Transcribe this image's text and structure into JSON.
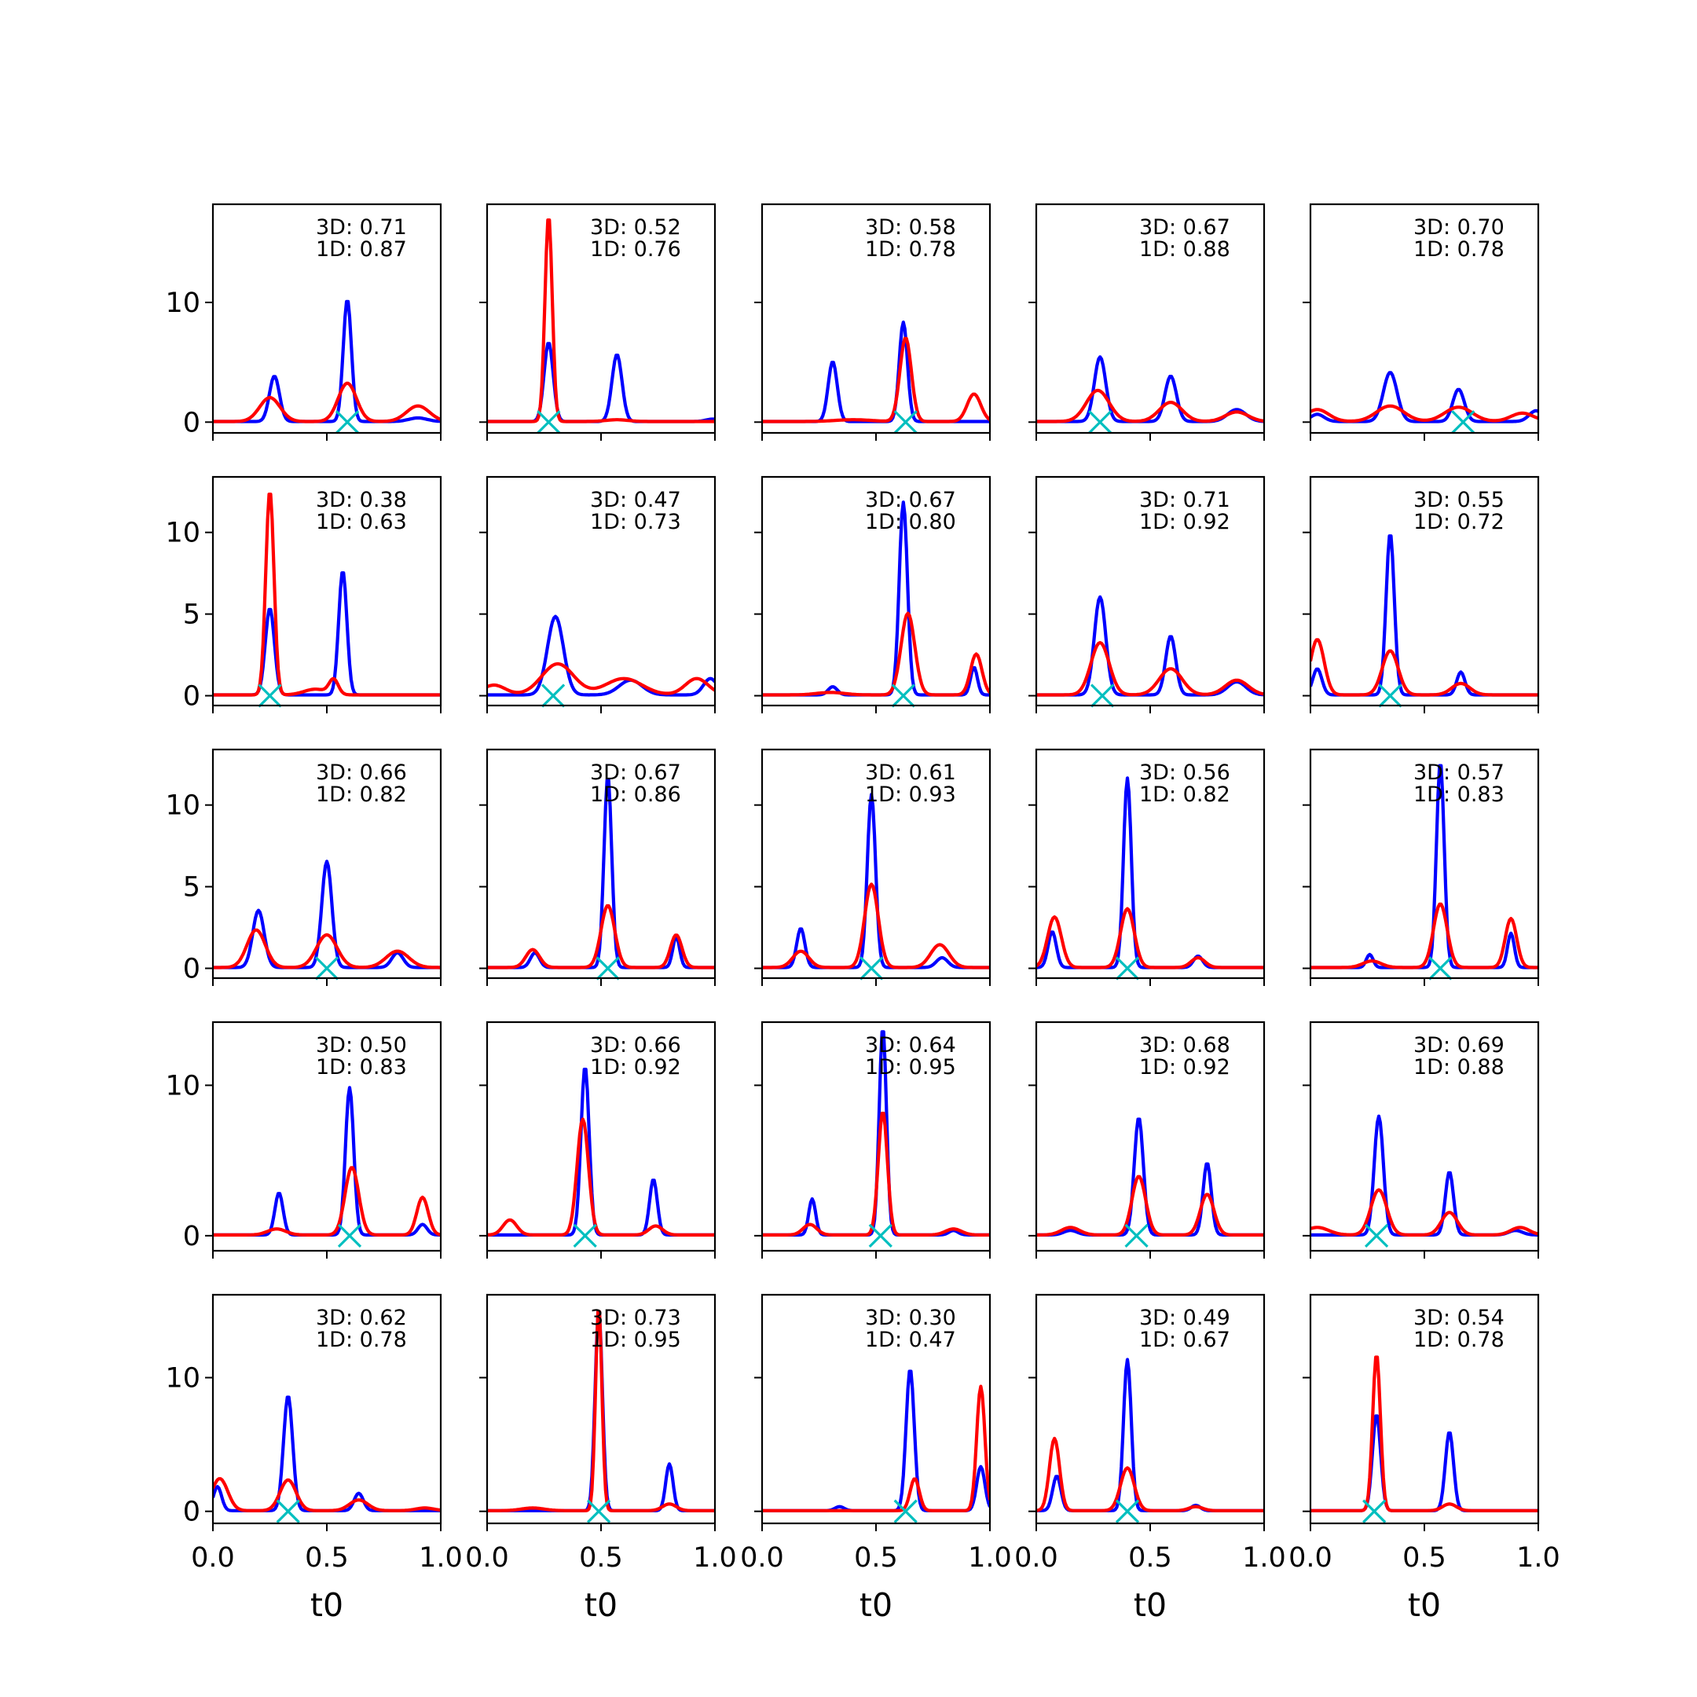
{
  "chart_data": {
    "type": "line",
    "layout": {
      "rows": 5,
      "cols": 5
    },
    "xlim": [
      0,
      1
    ],
    "xticks": [
      "0.0",
      "0.5",
      "1.0"
    ],
    "xlabel": "t0",
    "colors": {
      "blue": "#0000ff",
      "red": "#ff0000",
      "marker": "#00bfbf"
    },
    "row_yticks": [
      [
        "0",
        "10"
      ],
      [
        "0",
        "5",
        "10"
      ],
      [
        "0",
        "5",
        "10"
      ],
      [
        "0",
        "10"
      ],
      [
        "0",
        "10"
      ]
    ],
    "row_yticks_values": [
      [
        0,
        10
      ],
      [
        0,
        5,
        10
      ],
      [
        0,
        5,
        10
      ],
      [
        0,
        10
      ],
      [
        0,
        10
      ]
    ],
    "row_ylim": [
      [
        -0.9,
        18.2
      ],
      [
        -0.6,
        13.4
      ],
      [
        -0.6,
        13.4
      ],
      [
        -1.0,
        14.2
      ],
      [
        -0.9,
        16.2
      ]
    ],
    "panels": [
      {
        "label3d": "3D: 0.71",
        "label1d": "1D: 0.87",
        "marker_x": 0.59,
        "baseline": 0.05,
        "blue": [
          [
            0.27,
            3.8,
            0.022
          ],
          [
            0.59,
            10.2,
            0.018
          ],
          [
            0.9,
            0.3,
            0.04
          ]
        ],
        "red": [
          [
            0.25,
            2.0,
            0.045
          ],
          [
            0.59,
            3.2,
            0.04
          ],
          [
            0.9,
            1.3,
            0.05
          ]
        ]
      },
      {
        "label3d": "3D: 0.52",
        "label1d": "1D: 0.76",
        "marker_x": 0.27,
        "baseline": 0.05,
        "blue": [
          [
            0.27,
            6.6,
            0.02
          ],
          [
            0.57,
            5.6,
            0.022
          ],
          [
            0.99,
            0.2,
            0.03
          ]
        ],
        "red": [
          [
            0.27,
            17.2,
            0.016
          ],
          [
            0.57,
            0.15,
            0.05
          ]
        ]
      },
      {
        "label3d": "3D: 0.58",
        "label1d": "1D: 0.78",
        "marker_x": 0.63,
        "baseline": 0.05,
        "blue": [
          [
            0.31,
            5.0,
            0.02
          ],
          [
            0.62,
            8.3,
            0.018
          ]
        ],
        "red": [
          [
            0.63,
            7.0,
            0.025
          ],
          [
            0.93,
            2.3,
            0.03
          ],
          [
            0.4,
            0.15,
            0.08
          ]
        ]
      },
      {
        "label3d": "3D: 0.67",
        "label1d": "1D: 0.88",
        "marker_x": 0.28,
        "baseline": 0.05,
        "blue": [
          [
            0.28,
            5.4,
            0.025
          ],
          [
            0.59,
            3.8,
            0.025
          ],
          [
            0.88,
            1.0,
            0.04
          ]
        ],
        "red": [
          [
            0.27,
            2.6,
            0.05
          ],
          [
            0.59,
            1.6,
            0.05
          ],
          [
            0.88,
            0.8,
            0.05
          ]
        ]
      },
      {
        "label3d": "3D: 0.70",
        "label1d": "1D: 0.78",
        "marker_x": 0.67,
        "baseline": 0.05,
        "blue": [
          [
            0.35,
            4.1,
            0.03
          ],
          [
            0.65,
            2.7,
            0.025
          ],
          [
            0.99,
            0.9,
            0.03
          ],
          [
            0.03,
            0.6,
            0.03
          ]
        ],
        "red": [
          [
            0.35,
            1.3,
            0.06
          ],
          [
            0.65,
            1.2,
            0.06
          ],
          [
            0.03,
            1.0,
            0.05
          ],
          [
            0.93,
            0.7,
            0.05
          ]
        ]
      },
      {
        "label3d": "3D: 0.38",
        "label1d": "1D: 0.63",
        "marker_x": 0.25,
        "baseline": 0.05,
        "blue": [
          [
            0.25,
            5.3,
            0.02
          ],
          [
            0.57,
            7.6,
            0.018
          ]
        ],
        "red": [
          [
            0.25,
            12.5,
            0.018
          ],
          [
            0.53,
            0.9,
            0.02
          ],
          [
            0.45,
            0.35,
            0.05
          ]
        ]
      },
      {
        "label3d": "3D: 0.47",
        "label1d": "1D: 0.73",
        "marker_x": 0.29,
        "baseline": 0.05,
        "blue": [
          [
            0.3,
            4.8,
            0.035
          ],
          [
            0.63,
            0.9,
            0.05
          ],
          [
            0.98,
            1.0,
            0.03
          ]
        ],
        "red": [
          [
            0.31,
            1.9,
            0.07
          ],
          [
            0.6,
            1.0,
            0.08
          ],
          [
            0.92,
            1.0,
            0.05
          ],
          [
            0.03,
            0.6,
            0.05
          ]
        ]
      },
      {
        "label3d": "3D: 0.67",
        "label1d": "1D: 0.80",
        "marker_x": 0.62,
        "baseline": 0.05,
        "blue": [
          [
            0.62,
            11.8,
            0.018
          ],
          [
            0.31,
            0.5,
            0.02
          ],
          [
            0.93,
            1.7,
            0.015
          ]
        ],
        "red": [
          [
            0.64,
            5.0,
            0.03
          ],
          [
            0.94,
            2.5,
            0.025
          ],
          [
            0.3,
            0.15,
            0.06
          ]
        ]
      },
      {
        "label3d": "3D: 0.71",
        "label1d": "1D: 0.92",
        "marker_x": 0.29,
        "baseline": 0.05,
        "blue": [
          [
            0.28,
            6.0,
            0.025
          ],
          [
            0.59,
            3.6,
            0.022
          ],
          [
            0.88,
            0.8,
            0.04
          ]
        ],
        "red": [
          [
            0.28,
            3.2,
            0.04
          ],
          [
            0.59,
            1.6,
            0.05
          ],
          [
            0.88,
            0.9,
            0.05
          ]
        ]
      },
      {
        "label3d": "3D: 0.55",
        "label1d": "1D: 0.72",
        "marker_x": 0.35,
        "baseline": 0.05,
        "blue": [
          [
            0.35,
            9.9,
            0.018
          ],
          [
            0.03,
            1.6,
            0.02
          ],
          [
            0.66,
            1.4,
            0.018
          ]
        ],
        "red": [
          [
            0.35,
            2.7,
            0.035
          ],
          [
            0.03,
            3.4,
            0.03
          ],
          [
            0.66,
            0.7,
            0.04
          ]
        ]
      },
      {
        "label3d": "3D: 0.66",
        "label1d": "1D: 0.82",
        "marker_x": 0.5,
        "baseline": 0.05,
        "blue": [
          [
            0.2,
            3.5,
            0.025
          ],
          [
            0.5,
            6.5,
            0.022
          ],
          [
            0.81,
            0.9,
            0.025
          ]
        ],
        "red": [
          [
            0.19,
            2.3,
            0.04
          ],
          [
            0.5,
            2.0,
            0.045
          ],
          [
            0.81,
            1.0,
            0.05
          ]
        ]
      },
      {
        "label3d": "3D: 0.67",
        "label1d": "1D: 0.86",
        "marker_x": 0.53,
        "baseline": 0.05,
        "blue": [
          [
            0.53,
            11.7,
            0.017
          ],
          [
            0.21,
            0.9,
            0.02
          ],
          [
            0.83,
            1.9,
            0.015
          ]
        ],
        "red": [
          [
            0.53,
            3.8,
            0.03
          ],
          [
            0.2,
            1.1,
            0.03
          ],
          [
            0.83,
            2.0,
            0.025
          ]
        ]
      },
      {
        "label3d": "3D: 0.61",
        "label1d": "1D: 0.93",
        "marker_x": 0.48,
        "baseline": 0.05,
        "blue": [
          [
            0.48,
            10.6,
            0.018
          ],
          [
            0.17,
            2.4,
            0.018
          ],
          [
            0.79,
            0.6,
            0.025
          ]
        ],
        "red": [
          [
            0.48,
            5.1,
            0.03
          ],
          [
            0.17,
            1.0,
            0.035
          ],
          [
            0.78,
            1.4,
            0.04
          ]
        ]
      },
      {
        "label3d": "3D: 0.56",
        "label1d": "1D: 0.82",
        "marker_x": 0.4,
        "baseline": 0.05,
        "blue": [
          [
            0.4,
            11.6,
            0.017
          ],
          [
            0.07,
            2.2,
            0.018
          ],
          [
            0.71,
            0.7,
            0.02
          ]
        ],
        "red": [
          [
            0.4,
            3.6,
            0.03
          ],
          [
            0.08,
            3.1,
            0.03
          ],
          [
            0.71,
            0.6,
            0.03
          ]
        ]
      },
      {
        "label3d": "3D: 0.57",
        "label1d": "1D: 0.83",
        "marker_x": 0.57,
        "baseline": 0.05,
        "blue": [
          [
            0.57,
            12.6,
            0.017
          ],
          [
            0.26,
            0.8,
            0.015
          ],
          [
            0.88,
            2.1,
            0.015
          ]
        ],
        "red": [
          [
            0.57,
            3.9,
            0.03
          ],
          [
            0.27,
            0.4,
            0.04
          ],
          [
            0.88,
            3.0,
            0.025
          ]
        ]
      },
      {
        "label3d": "3D: 0.50",
        "label1d": "1D: 0.83",
        "marker_x": 0.6,
        "baseline": 0.05,
        "blue": [
          [
            0.29,
            2.8,
            0.018
          ],
          [
            0.6,
            9.8,
            0.018
          ],
          [
            0.92,
            0.7,
            0.02
          ]
        ],
        "red": [
          [
            0.61,
            4.5,
            0.03
          ],
          [
            0.92,
            2.5,
            0.025
          ],
          [
            0.28,
            0.4,
            0.04
          ]
        ]
      },
      {
        "label3d": "3D: 0.66",
        "label1d": "1D: 0.92",
        "marker_x": 0.43,
        "baseline": 0.05,
        "blue": [
          [
            0.43,
            11.2,
            0.018
          ],
          [
            0.73,
            3.7,
            0.017
          ]
        ],
        "red": [
          [
            0.42,
            7.7,
            0.025
          ],
          [
            0.1,
            1.0,
            0.03
          ],
          [
            0.74,
            0.6,
            0.03
          ]
        ]
      },
      {
        "label3d": "3D: 0.64",
        "label1d": "1D: 0.95",
        "marker_x": 0.52,
        "baseline": 0.05,
        "blue": [
          [
            0.53,
            13.8,
            0.016
          ],
          [
            0.22,
            2.4,
            0.015
          ],
          [
            0.84,
            0.3,
            0.02
          ]
        ],
        "red": [
          [
            0.53,
            8.2,
            0.02
          ],
          [
            0.21,
            0.7,
            0.03
          ],
          [
            0.84,
            0.4,
            0.035
          ]
        ]
      },
      {
        "label3d": "3D: 0.68",
        "label1d": "1D: 0.92",
        "marker_x": 0.44,
        "baseline": 0.05,
        "blue": [
          [
            0.45,
            7.8,
            0.02
          ],
          [
            0.75,
            4.8,
            0.018
          ],
          [
            0.15,
            0.3,
            0.03
          ]
        ],
        "red": [
          [
            0.45,
            3.9,
            0.03
          ],
          [
            0.75,
            2.7,
            0.03
          ],
          [
            0.15,
            0.5,
            0.04
          ]
        ]
      },
      {
        "label3d": "3D: 0.69",
        "label1d": "1D: 0.88",
        "marker_x": 0.29,
        "baseline": 0.05,
        "blue": [
          [
            0.3,
            7.9,
            0.02
          ],
          [
            0.61,
            4.2,
            0.018
          ],
          [
            0.9,
            0.3,
            0.03
          ]
        ],
        "red": [
          [
            0.3,
            3.0,
            0.035
          ],
          [
            0.61,
            1.5,
            0.035
          ],
          [
            0.03,
            0.5,
            0.05
          ],
          [
            0.92,
            0.5,
            0.04
          ]
        ]
      },
      {
        "label3d": "3D: 0.62",
        "label1d": "1D: 0.78",
        "marker_x": 0.33,
        "baseline": 0.05,
        "blue": [
          [
            0.33,
            8.6,
            0.02
          ],
          [
            0.02,
            1.8,
            0.018
          ],
          [
            0.64,
            1.3,
            0.02
          ]
        ],
        "red": [
          [
            0.33,
            2.3,
            0.035
          ],
          [
            0.03,
            2.4,
            0.035
          ],
          [
            0.64,
            0.8,
            0.04
          ],
          [
            0.93,
            0.2,
            0.04
          ]
        ]
      },
      {
        "label3d": "3D: 0.73",
        "label1d": "1D: 0.95",
        "marker_x": 0.49,
        "baseline": 0.05,
        "blue": [
          [
            0.49,
            15.0,
            0.016
          ],
          [
            0.8,
            3.5,
            0.016
          ]
        ],
        "red": [
          [
            0.49,
            15.3,
            0.014
          ],
          [
            0.8,
            0.5,
            0.03
          ],
          [
            0.2,
            0.2,
            0.05
          ]
        ]
      },
      {
        "label3d": "3D: 0.30",
        "label1d": "1D: 0.47",
        "marker_x": 0.63,
        "baseline": 0.05,
        "blue": [
          [
            0.65,
            10.6,
            0.018
          ],
          [
            0.96,
            3.3,
            0.018
          ],
          [
            0.34,
            0.3,
            0.02
          ]
        ],
        "red": [
          [
            0.96,
            9.3,
            0.018
          ],
          [
            0.67,
            2.4,
            0.02
          ]
        ]
      },
      {
        "label3d": "3D: 0.49",
        "label1d": "1D: 0.67",
        "marker_x": 0.4,
        "baseline": 0.05,
        "blue": [
          [
            0.4,
            11.3,
            0.017
          ],
          [
            0.09,
            2.6,
            0.018
          ],
          [
            0.7,
            0.4,
            0.02
          ]
        ],
        "red": [
          [
            0.08,
            5.4,
            0.022
          ],
          [
            0.4,
            3.2,
            0.03
          ],
          [
            0.7,
            0.3,
            0.03
          ]
        ]
      },
      {
        "label3d": "3D: 0.54",
        "label1d": "1D: 0.78",
        "marker_x": 0.28,
        "baseline": 0.05,
        "blue": [
          [
            0.29,
            7.2,
            0.018
          ],
          [
            0.61,
            5.9,
            0.018
          ]
        ],
        "red": [
          [
            0.29,
            11.7,
            0.017
          ],
          [
            0.61,
            0.5,
            0.03
          ]
        ]
      }
    ]
  }
}
